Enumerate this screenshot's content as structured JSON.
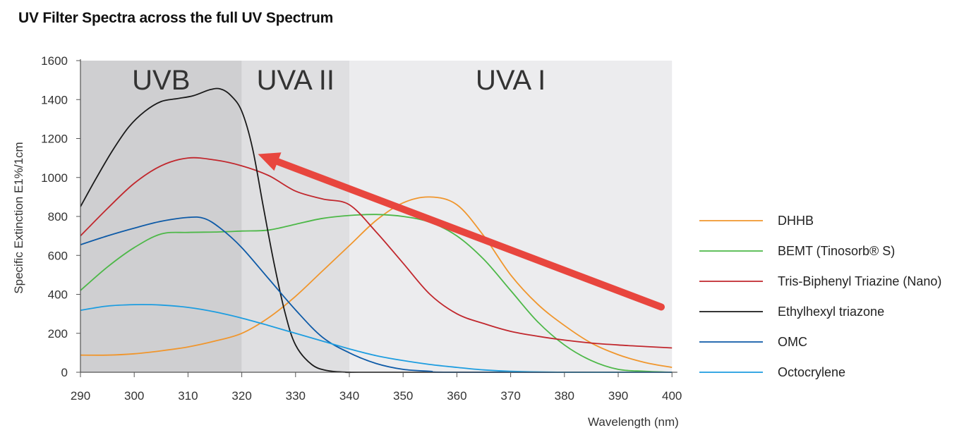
{
  "title": "UV Filter Spectra across the full UV Spectrum",
  "chart_data": {
    "type": "line",
    "xlabel": "Wavelength (nm)",
    "ylabel": "Specific Extinction E1%/1cm",
    "xlim": [
      290,
      401
    ],
    "ylim": [
      0,
      1600
    ],
    "x_ticks": [
      290,
      300,
      310,
      320,
      330,
      340,
      350,
      360,
      370,
      380,
      390,
      400
    ],
    "y_ticks": [
      0,
      200,
      400,
      600,
      800,
      1000,
      1200,
      1400,
      1600
    ],
    "grid": false,
    "legend_position": "right",
    "bands": [
      {
        "label": "UVB",
        "from": 290,
        "to": 320,
        "color": "#cfcfd1"
      },
      {
        "label": "UVA II",
        "from": 320,
        "to": 340,
        "color": "#dfdfe1"
      },
      {
        "label": "UVA I",
        "from": 340,
        "to": 400,
        "color": "#ececee"
      }
    ],
    "series": [
      {
        "name": "DHHB",
        "color": "#f0962d",
        "x": [
          290,
          295,
          300,
          305,
          310,
          315,
          320,
          325,
          330,
          335,
          340,
          345,
          350,
          355,
          360,
          365,
          370,
          375,
          380,
          385,
          390,
          395,
          400
        ],
        "y": [
          88,
          88,
          95,
          110,
          130,
          160,
          200,
          280,
          390,
          520,
          650,
          780,
          870,
          900,
          860,
          700,
          500,
          350,
          240,
          150,
          90,
          50,
          25
        ]
      },
      {
        "name": "BEMT (Tinosorb® S)",
        "color": "#4db848",
        "x": [
          290,
          295,
          300,
          305,
          310,
          315,
          320,
          325,
          330,
          335,
          340,
          345,
          350,
          355,
          360,
          365,
          370,
          375,
          380,
          385,
          390,
          395,
          400
        ],
        "y": [
          420,
          540,
          640,
          710,
          718,
          720,
          725,
          730,
          760,
          790,
          805,
          810,
          800,
          770,
          700,
          580,
          420,
          260,
          140,
          60,
          15,
          5,
          0
        ]
      },
      {
        "name": "Tris-Biphenyl Triazine (Nano)",
        "color": "#c1272d",
        "x": [
          290,
          295,
          300,
          305,
          310,
          315,
          320,
          325,
          330,
          335,
          340,
          345,
          350,
          355,
          360,
          365,
          370,
          375,
          380,
          385,
          390,
          395,
          400
        ],
        "y": [
          700,
          840,
          970,
          1060,
          1100,
          1090,
          1060,
          1010,
          930,
          890,
          860,
          720,
          560,
          400,
          300,
          250,
          210,
          185,
          165,
          150,
          140,
          132,
          125
        ]
      },
      {
        "name": "Ethylhexyl triazone",
        "color": "#1a1a1a",
        "x": [
          290,
          293,
          296,
          299,
          302,
          305,
          308,
          311,
          314,
          316,
          318,
          320,
          322,
          324,
          326,
          328,
          330,
          333,
          336,
          340,
          345,
          400
        ],
        "y": [
          850,
          1000,
          1140,
          1260,
          1340,
          1390,
          1405,
          1420,
          1450,
          1455,
          1420,
          1340,
          1150,
          850,
          560,
          310,
          140,
          40,
          8,
          0,
          0,
          0
        ]
      },
      {
        "name": "OMC",
        "color": "#0d5aa7",
        "x": [
          290,
          295,
          300,
          305,
          310,
          313,
          316,
          320,
          325,
          330,
          335,
          340,
          345,
          350,
          355,
          360,
          400
        ],
        "y": [
          655,
          700,
          740,
          775,
          795,
          790,
          740,
          640,
          480,
          320,
          180,
          100,
          45,
          15,
          5,
          0,
          0
        ]
      },
      {
        "name": "Octocrylene",
        "color": "#1d9de0",
        "x": [
          290,
          295,
          300,
          305,
          310,
          315,
          320,
          325,
          330,
          335,
          340,
          345,
          350,
          355,
          360,
          365,
          370,
          380,
          390,
          400
        ],
        "y": [
          318,
          340,
          347,
          345,
          333,
          310,
          278,
          240,
          200,
          160,
          120,
          85,
          60,
          40,
          25,
          12,
          5,
          0,
          0,
          0
        ]
      }
    ],
    "annotations": [
      {
        "type": "arrow",
        "color": "#e8463e",
        "from": [
          398,
          335
        ],
        "to": [
          323,
          1120
        ]
      }
    ]
  }
}
